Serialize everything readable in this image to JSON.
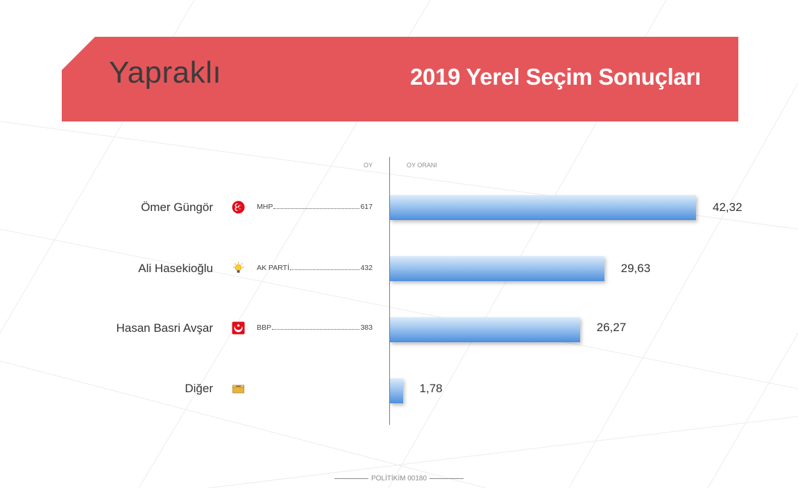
{
  "header": {
    "city": "Yapraklı",
    "title": "2019 Yerel Seçim Sonuçları"
  },
  "columns": {
    "votes": "OY",
    "ratio": "OY ORANI"
  },
  "rows": [
    {
      "candidate": "Ömer Güngör",
      "party": "MHP",
      "votes": "617",
      "pct_label": "42,32",
      "icon": "mhp-crescents-icon"
    },
    {
      "candidate": "Ali Hasekioğlu",
      "party": "AK PARTİ",
      "votes": "432",
      "pct_label": "29,63",
      "icon": "akp-lightbulb-icon"
    },
    {
      "candidate": "Hasan Basri Avşar",
      "party": "BBP",
      "votes": "383",
      "pct_label": "26,27",
      "icon": "bbp-crescent-icon"
    },
    {
      "candidate": "Diğer",
      "party": "",
      "votes": "",
      "pct_label": "1,78",
      "icon": "ballot-box-icon"
    }
  ],
  "chart_data": {
    "type": "bar",
    "orientation": "horizontal",
    "categories": [
      "Ömer Güngör",
      "Ali Hasekioğlu",
      "Hasan Basri Avşar",
      "Diğer"
    ],
    "values": [
      42.32,
      29.63,
      26.27,
      1.78
    ],
    "xlim": [
      0,
      42.32
    ]
  },
  "colors": {
    "banner": "#e5565a",
    "bar_top": "#dcebfa",
    "bar_bottom": "#4d8fdc"
  },
  "footer": {
    "text": "POLİTİKİM  00180"
  }
}
